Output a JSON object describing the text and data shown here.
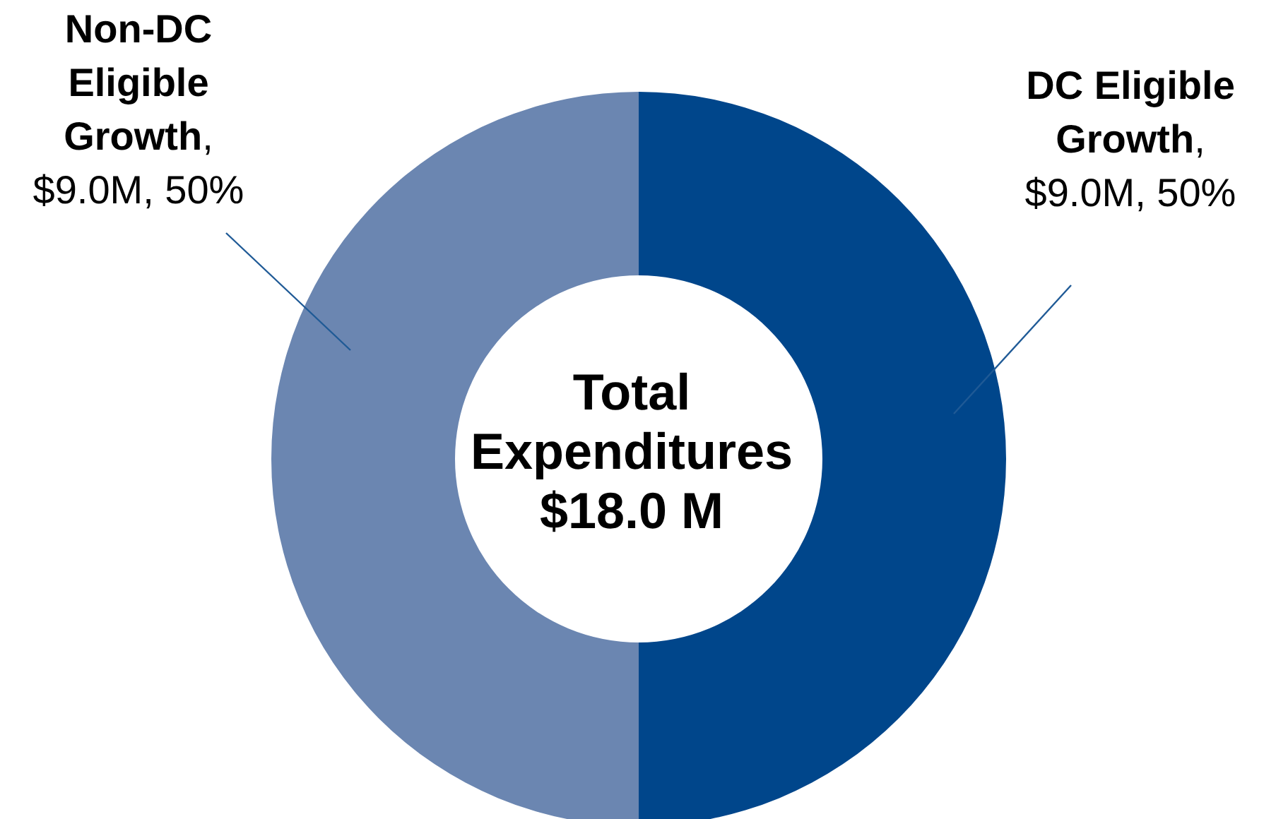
{
  "chart_data": {
    "type": "donut",
    "categories": [
      "DC Eligible Growth",
      "Non-DC Eligible Growth"
    ],
    "values": [
      50,
      50
    ],
    "value_labels": [
      ", $9.0M, 50%",
      ", $9.0M, 50%"
    ],
    "colors": [
      "#00468b",
      "#6b86b1"
    ],
    "annotations": [
      "Total Expenditures $18.0 M"
    ],
    "legend": false
  }
}
